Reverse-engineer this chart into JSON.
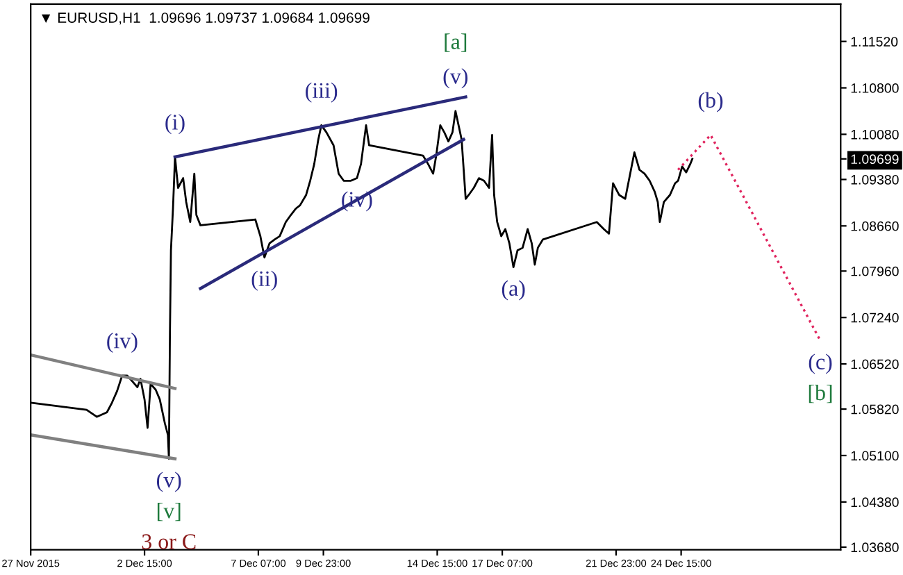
{
  "chart_data": {
    "type": "line",
    "title": "▼ EURUSD,H1  1.09696 1.09737 1.09684 1.09699",
    "xlim": [
      "2015-11-27T23:00",
      "2015-12-31T04:00"
    ],
    "ylim": [
      1.0364,
      1.121
    ],
    "xticks": [
      {
        "value": "2015-11-27T23:00",
        "label": "27 Nov 2015"
      },
      {
        "value": "2015-12-02T15:00",
        "label": "2 Dec 15:00"
      },
      {
        "value": "2015-12-07T07:00",
        "label": "7 Dec 07:00"
      },
      {
        "value": "2015-12-09T23:00",
        "label": "9 Dec 23:00"
      },
      {
        "value": "2015-12-14T15:00",
        "label": "14 Dec 15:00"
      },
      {
        "value": "2015-12-17T07:00",
        "label": "17 Dec 07:00"
      },
      {
        "value": "2015-12-21T23:00",
        "label": "21 Dec 23:00"
      },
      {
        "value": "2015-12-24T15:00",
        "label": "24 Dec 15:00"
      }
    ],
    "yticks": [
      {
        "value": 1.1152,
        "label": "1.11520"
      },
      {
        "value": 1.108,
        "label": "1.10800"
      },
      {
        "value": 1.1008,
        "label": "1.10080"
      },
      {
        "value": 1.09699,
        "label": "1.09699"
      },
      {
        "value": 1.0938,
        "label": "1.09380"
      },
      {
        "value": 1.0866,
        "label": "1.08660"
      },
      {
        "value": 1.0796,
        "label": "1.07960"
      },
      {
        "value": 1.0724,
        "label": "1.07240"
      },
      {
        "value": 1.0652,
        "label": "1.06520"
      },
      {
        "value": 1.0582,
        "label": "1.05820"
      },
      {
        "value": 1.051,
        "label": "1.05100"
      },
      {
        "value": 1.0438,
        "label": "1.04380"
      },
      {
        "value": 1.0368,
        "label": "1.03680"
      }
    ],
    "series": [
      {
        "color": "#000000",
        "line_style": "solid",
        "x": [
          "2015-11-27T23:00",
          "2015-11-30T06:00",
          "2015-11-30T16:00",
          "2015-12-01T02:00",
          "2015-12-01T07:00",
          "2015-12-01T12:00",
          "2015-12-01T17:00",
          "2015-12-01T22:00",
          "2015-12-02T03:00",
          "2015-12-02T08:00",
          "2015-12-02T11:00",
          "2015-12-02T15:00",
          "2015-12-02T18:00",
          "2015-12-02T21:00",
          "2015-12-03T02:00",
          "2015-12-03T06:00",
          "2015-12-03T11:00",
          "2015-12-03T14:00",
          "2015-12-03T15:00",
          "2015-12-03T16:00",
          "2015-12-03T17:00",
          "2015-12-03T19:00",
          "2015-12-03T21:00",
          "2015-12-04T00:00",
          "2015-12-04T05:00",
          "2015-12-04T08:00",
          "2015-12-04T12:00",
          "2015-12-04T16:00",
          "2015-12-04T18:00",
          "2015-12-04T22:00",
          "2015-12-07T04:00",
          "2015-12-07T09:00",
          "2015-12-07T13:00",
          "2015-12-07T18:00",
          "2015-12-07T23:00",
          "2015-12-08T04:00",
          "2015-12-08T10:00",
          "2015-12-08T15:00",
          "2015-12-08T20:00",
          "2015-12-09T00:00",
          "2015-12-09T06:00",
          "2015-12-09T10:00",
          "2015-12-09T14:00",
          "2015-12-09T18:00",
          "2015-12-09T21:00",
          "2015-12-10T02:00",
          "2015-12-10T09:00",
          "2015-12-10T14:00",
          "2015-12-10T19:00",
          "2015-12-11T02:00",
          "2015-12-11T08:00",
          "2015-12-11T12:00",
          "2015-12-11T17:00",
          "2015-12-11T20:00",
          "2015-12-14T01:00",
          "2015-12-14T06:00",
          "2015-12-14T11:00",
          "2015-12-14T14:00",
          "2015-12-14T18:00",
          "2015-12-14T22:00",
          "2015-12-15T02:00",
          "2015-12-15T06:00",
          "2015-12-15T09:00",
          "2015-12-15T12:00",
          "2015-12-15T15:00",
          "2015-12-15T19:00",
          "2015-12-15T22:00",
          "2015-12-16T03:00",
          "2015-12-16T08:00",
          "2015-12-16T13:00",
          "2015-12-16T18:00",
          "2015-12-16T21:00",
          "2015-12-16T23:00",
          "2015-12-17T02:00",
          "2015-12-17T06:00",
          "2015-12-17T10:00",
          "2015-12-17T14:00",
          "2015-12-17T18:00",
          "2015-12-17T22:00",
          "2015-12-18T03:00",
          "2015-12-18T08:00",
          "2015-12-18T12:00",
          "2015-12-18T15:00",
          "2015-12-18T18:00",
          "2015-12-18T23:00",
          "2015-12-21T04:00",
          "2015-12-21T11:00",
          "2015-12-21T16:00",
          "2015-12-21T18:00",
          "2015-12-21T20:00",
          "2015-12-22T02:00",
          "2015-12-22T08:00",
          "2015-12-22T12:00",
          "2015-12-22T17:00",
          "2015-12-22T22:00",
          "2015-12-23T03:00",
          "2015-12-23T08:00",
          "2015-12-23T13:00",
          "2015-12-23T16:00",
          "2015-12-23T18:00",
          "2015-12-23T22:00",
          "2015-12-24T04:00",
          "2015-12-24T09:00",
          "2015-12-24T12:00",
          "2015-12-24T16:00",
          "2015-12-24T20:00",
          "2015-12-25T00:00",
          "2015-12-25T02:00"
        ],
        "values": [
          1.0592,
          1.0581,
          1.057,
          1.0577,
          1.0592,
          1.061,
          1.0634,
          1.0634,
          1.0625,
          1.0616,
          1.0629,
          1.0597,
          1.0553,
          1.0621,
          1.0612,
          1.0597,
          1.056,
          1.0542,
          1.0505,
          1.0699,
          1.0828,
          1.0893,
          1.0973,
          1.0925,
          1.094,
          1.0903,
          1.0872,
          1.0947,
          1.0883,
          1.0867,
          1.0876,
          1.085,
          1.0817,
          1.0839,
          1.0845,
          1.085,
          1.0872,
          1.0883,
          1.0893,
          1.0898,
          1.0914,
          1.0936,
          1.0962,
          1.1,
          1.1022,
          1.1011,
          1.0991,
          1.0947,
          1.0936,
          1.0936,
          1.094,
          1.0962,
          1.1022,
          1.0991,
          1.0975,
          1.0962,
          1.0947,
          1.0975,
          1.1022,
          1.1011,
          1.0997,
          1.1011,
          1.1044,
          1.1022,
          1.1,
          1.0908,
          1.0914,
          1.0925,
          1.094,
          1.0936,
          1.0925,
          1.1007,
          1.0914,
          1.0872,
          1.085,
          1.0861,
          1.0839,
          1.0802,
          1.0828,
          1.0832,
          1.0861,
          1.0839,
          1.0806,
          1.0832,
          1.0845,
          1.0872,
          1.0861,
          1.0854,
          1.0893,
          1.0932,
          1.0914,
          1.0908,
          1.094,
          1.098,
          1.0953,
          1.0947,
          1.0936,
          1.0919,
          1.0903,
          1.0872,
          1.0903,
          1.0914,
          1.0932,
          1.0936,
          1.0958,
          1.0949,
          1.0962,
          1.09699
        ]
      },
      {
        "color": "#2a2a7a",
        "line_style": "solid",
        "x": [
          "2015-12-03T21:00",
          "2015-12-15T19:00"
        ],
        "values": [
          1.0973,
          1.1066
        ]
      },
      {
        "color": "#2a2a7a",
        "line_style": "solid",
        "x": [
          "2015-12-04T22:00",
          "2015-12-15T17:00"
        ],
        "values": [
          1.0769,
          1.1
        ]
      },
      {
        "color": "#808080",
        "line_style": "solid",
        "x": [
          "2015-11-27T23:00",
          "2015-12-03T21:00"
        ],
        "values": [
          1.0666,
          1.0614
        ]
      },
      {
        "color": "#808080",
        "line_style": "solid",
        "x": [
          "2015-11-27T23:00",
          "2015-12-03T21:00"
        ],
        "values": [
          1.0542,
          1.0505
        ]
      },
      {
        "color": "#e0245e",
        "line_style": "dotted",
        "x": [
          "2015-12-24T12:00",
          "2015-12-25T20:00",
          "2015-12-30T08:00"
        ],
        "values": [
          1.0953,
          1.1007,
          1.0688
        ]
      }
    ],
    "annotations": [
      {
        "text": "(i)",
        "x": "2015-12-03T21:00",
        "y": 1.0973
      },
      {
        "text": "(iii)",
        "x": "2015-12-09T21:00",
        "y": 1.1022
      },
      {
        "text": "(v)",
        "x": "2015-12-15T09:00",
        "y": 1.1044
      },
      {
        "text": "[a]",
        "x": "2015-12-15T09:00",
        "y": 1.1044
      },
      {
        "text": "(ii)",
        "x": "2015-12-07T13:00",
        "y": 1.0817
      },
      {
        "text": "(iv)",
        "x": "2015-12-11T08:00",
        "y": 1.094
      },
      {
        "text": "(a)",
        "x": "2015-12-17T18:00",
        "y": 1.0802
      },
      {
        "text": "(b)",
        "x": "2015-12-25T20:00",
        "y": 1.1007
      },
      {
        "text": "(c)",
        "x": "2015-12-30T08:00",
        "y": 1.0688
      },
      {
        "text": "[b]",
        "x": "2015-12-30T08:00",
        "y": 1.0688
      },
      {
        "text": "(iv)",
        "x": "2015-12-01T17:00",
        "y": 1.0634
      },
      {
        "text": "(v)",
        "x": "2015-12-03T15:00",
        "y": 1.0505
      },
      {
        "text": "[v]",
        "x": "2015-12-03T15:00",
        "y": 1.0505
      },
      "3 or C"
    ]
  }
}
